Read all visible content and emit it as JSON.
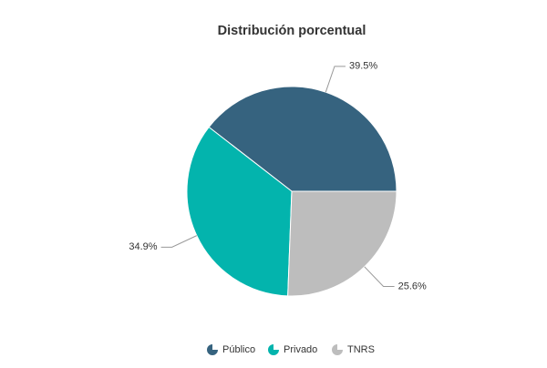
{
  "chart_data": {
    "type": "pie",
    "title": "Distribución porcentual",
    "categories": [
      "Público",
      "Privado",
      "TNRS"
    ],
    "values": [
      39.5,
      34.9,
      25.6
    ],
    "value_labels": [
      "39.5%",
      "34.9%",
      "25.6%"
    ],
    "colors": [
      "#36637f",
      "#03b4ad",
      "#bdbdbd"
    ],
    "legend": "bottom"
  }
}
